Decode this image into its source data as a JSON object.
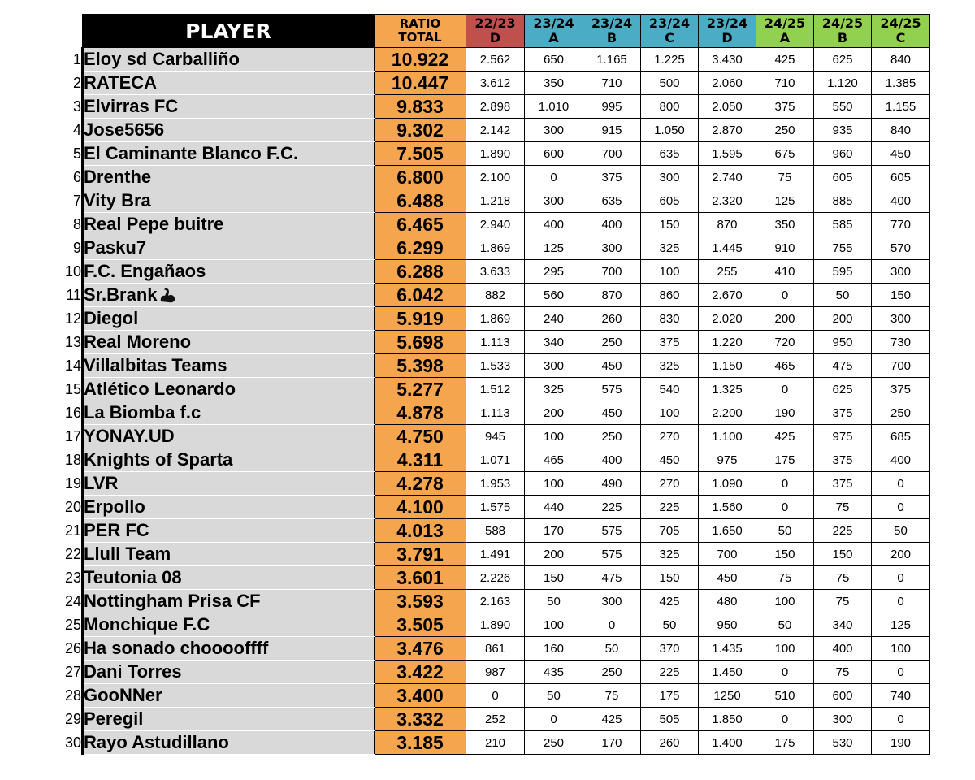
{
  "header": {
    "player": "PLAYER",
    "ratio_line1": "RATIO",
    "ratio_line2": "TOTAL",
    "seasons": [
      {
        "year": "22/23",
        "phase": "D",
        "color": "#c0504d"
      },
      {
        "year": "23/24",
        "phase": "A",
        "color": "#4bacc6"
      },
      {
        "year": "23/24",
        "phase": "B",
        "color": "#4bacc6"
      },
      {
        "year": "23/24",
        "phase": "C",
        "color": "#4bacc6"
      },
      {
        "year": "23/24",
        "phase": "D",
        "color": "#4bacc6"
      },
      {
        "year": "24/25",
        "phase": "A",
        "color": "#92d050"
      },
      {
        "year": "24/25",
        "phase": "B",
        "color": "#92d050"
      },
      {
        "year": "24/25",
        "phase": "C",
        "color": "#92d050"
      }
    ]
  },
  "rows": [
    {
      "rank": "1",
      "name": "Eloy sd Carballiño",
      "ratio": "10.922",
      "values": [
        "2.562",
        "650",
        "1.165",
        "1.225",
        "3.430",
        "425",
        "625",
        "840"
      ]
    },
    {
      "rank": "2",
      "name": "RATECA",
      "ratio": "10.447",
      "values": [
        "3.612",
        "350",
        "710",
        "500",
        "2.060",
        "710",
        "1.120",
        "1.385"
      ]
    },
    {
      "rank": "3",
      "name": "Elvirras FC",
      "ratio": "9.833",
      "values": [
        "2.898",
        "1.010",
        "995",
        "800",
        "2.050",
        "375",
        "550",
        "1.155"
      ]
    },
    {
      "rank": "4",
      "name": "Jose5656",
      "ratio": "9.302",
      "values": [
        "2.142",
        "300",
        "915",
        "1.050",
        "2.870",
        "250",
        "935",
        "840"
      ]
    },
    {
      "rank": "5",
      "name": "El Caminante Blanco F.C.",
      "ratio": "7.505",
      "values": [
        "1.890",
        "600",
        "700",
        "635",
        "1.595",
        "675",
        "960",
        "450"
      ]
    },
    {
      "rank": "6",
      "name": "Drenthe",
      "ratio": "6.800",
      "values": [
        "2.100",
        "0",
        "375",
        "300",
        "2.740",
        "75",
        "605",
        "605"
      ]
    },
    {
      "rank": "7",
      "name": "Vity Bra",
      "ratio": "6.488",
      "values": [
        "1.218",
        "300",
        "635",
        "605",
        "2.320",
        "125",
        "885",
        "400"
      ]
    },
    {
      "rank": "8",
      "name": "Real Pepe buitre",
      "ratio": "6.465",
      "values": [
        "2.940",
        "400",
        "400",
        "150",
        "870",
        "350",
        "585",
        "770"
      ]
    },
    {
      "rank": "9",
      "name": "Pasku7",
      "ratio": "6.299",
      "values": [
        "1.869",
        "125",
        "300",
        "325",
        "1.445",
        "910",
        "755",
        "570"
      ]
    },
    {
      "rank": "10",
      "name": "F.C. Engañaos",
      "ratio": "6.288",
      "values": [
        "3.633",
        "295",
        "700",
        "100",
        "255",
        "410",
        "595",
        "300"
      ]
    },
    {
      "rank": "11",
      "name": "Sr.Brank",
      "icon": "flexed-biceps-icon",
      "ratio": "6.042",
      "values": [
        "882",
        "560",
        "870",
        "860",
        "2.670",
        "0",
        "50",
        "150"
      ]
    },
    {
      "rank": "12",
      "name": "Diegol",
      "ratio": "5.919",
      "values": [
        "1.869",
        "240",
        "260",
        "830",
        "2.020",
        "200",
        "200",
        "300"
      ]
    },
    {
      "rank": "13",
      "name": "Real Moreno",
      "ratio": "5.698",
      "values": [
        "1.113",
        "340",
        "250",
        "375",
        "1.220",
        "720",
        "950",
        "730"
      ]
    },
    {
      "rank": "14",
      "name": "Villalbitas Teams",
      "ratio": "5.398",
      "values": [
        "1.533",
        "300",
        "450",
        "325",
        "1.150",
        "465",
        "475",
        "700"
      ]
    },
    {
      "rank": "15",
      "name": "Atlético Leonardo",
      "ratio": "5.277",
      "values": [
        "1.512",
        "325",
        "575",
        "540",
        "1.325",
        "0",
        "625",
        "375"
      ]
    },
    {
      "rank": "16",
      "name": "La Biomba f.c",
      "ratio": "4.878",
      "values": [
        "1.113",
        "200",
        "450",
        "100",
        "2.200",
        "190",
        "375",
        "250"
      ]
    },
    {
      "rank": "17",
      "name": "YONAY.UD",
      "ratio": "4.750",
      "values": [
        "945",
        "100",
        "250",
        "270",
        "1.100",
        "425",
        "975",
        "685"
      ]
    },
    {
      "rank": "18",
      "name": "Knights of Sparta",
      "ratio": "4.311",
      "values": [
        "1.071",
        "465",
        "400",
        "450",
        "975",
        "175",
        "375",
        "400"
      ]
    },
    {
      "rank": "19",
      "name": "LVR",
      "ratio": "4.278",
      "values": [
        "1.953",
        "100",
        "490",
        "270",
        "1.090",
        "0",
        "375",
        "0"
      ]
    },
    {
      "rank": "20",
      "name": "Erpollo",
      "ratio": "4.100",
      "values": [
        "1.575",
        "440",
        "225",
        "225",
        "1.560",
        "0",
        "75",
        "0"
      ]
    },
    {
      "rank": "21",
      "name": "PER FC",
      "ratio": "4.013",
      "values": [
        "588",
        "170",
        "575",
        "705",
        "1.650",
        "50",
        "225",
        "50"
      ]
    },
    {
      "rank": "22",
      "name": "Llull Team",
      "ratio": "3.791",
      "values": [
        "1.491",
        "200",
        "575",
        "325",
        "700",
        "150",
        "150",
        "200"
      ]
    },
    {
      "rank": "23",
      "name": "Teutonia 08",
      "ratio": "3.601",
      "values": [
        "2.226",
        "150",
        "475",
        "150",
        "450",
        "75",
        "75",
        "0"
      ]
    },
    {
      "rank": "24",
      "name": "Nottingham Prisa CF",
      "ratio": "3.593",
      "values": [
        "2.163",
        "50",
        "300",
        "425",
        "480",
        "100",
        "75",
        "0"
      ]
    },
    {
      "rank": "25",
      "name": "Monchique F.C",
      "ratio": "3.505",
      "values": [
        "1.890",
        "100",
        "0",
        "50",
        "950",
        "50",
        "340",
        "125"
      ]
    },
    {
      "rank": "26",
      "name": "Ha sonado chooooffff",
      "ratio": "3.476",
      "values": [
        "861",
        "160",
        "50",
        "370",
        "1.435",
        "100",
        "400",
        "100"
      ]
    },
    {
      "rank": "27",
      "name": "Dani Torres",
      "ratio": "3.422",
      "values": [
        "987",
        "435",
        "250",
        "225",
        "1.450",
        "0",
        "75",
        "0"
      ]
    },
    {
      "rank": "28",
      "name": "GooNNer",
      "ratio": "3.400",
      "values": [
        "0",
        "50",
        "75",
        "175",
        "1250",
        "510",
        "600",
        "740"
      ]
    },
    {
      "rank": "29",
      "name": "Peregil",
      "ratio": "3.332",
      "values": [
        "252",
        "0",
        "425",
        "505",
        "1.850",
        "0",
        "300",
        "0"
      ]
    },
    {
      "rank": "30",
      "name": "Rayo Astudillano",
      "ratio": "3.185",
      "values": [
        "210",
        "250",
        "170",
        "260",
        "1.400",
        "175",
        "530",
        "190"
      ]
    }
  ]
}
